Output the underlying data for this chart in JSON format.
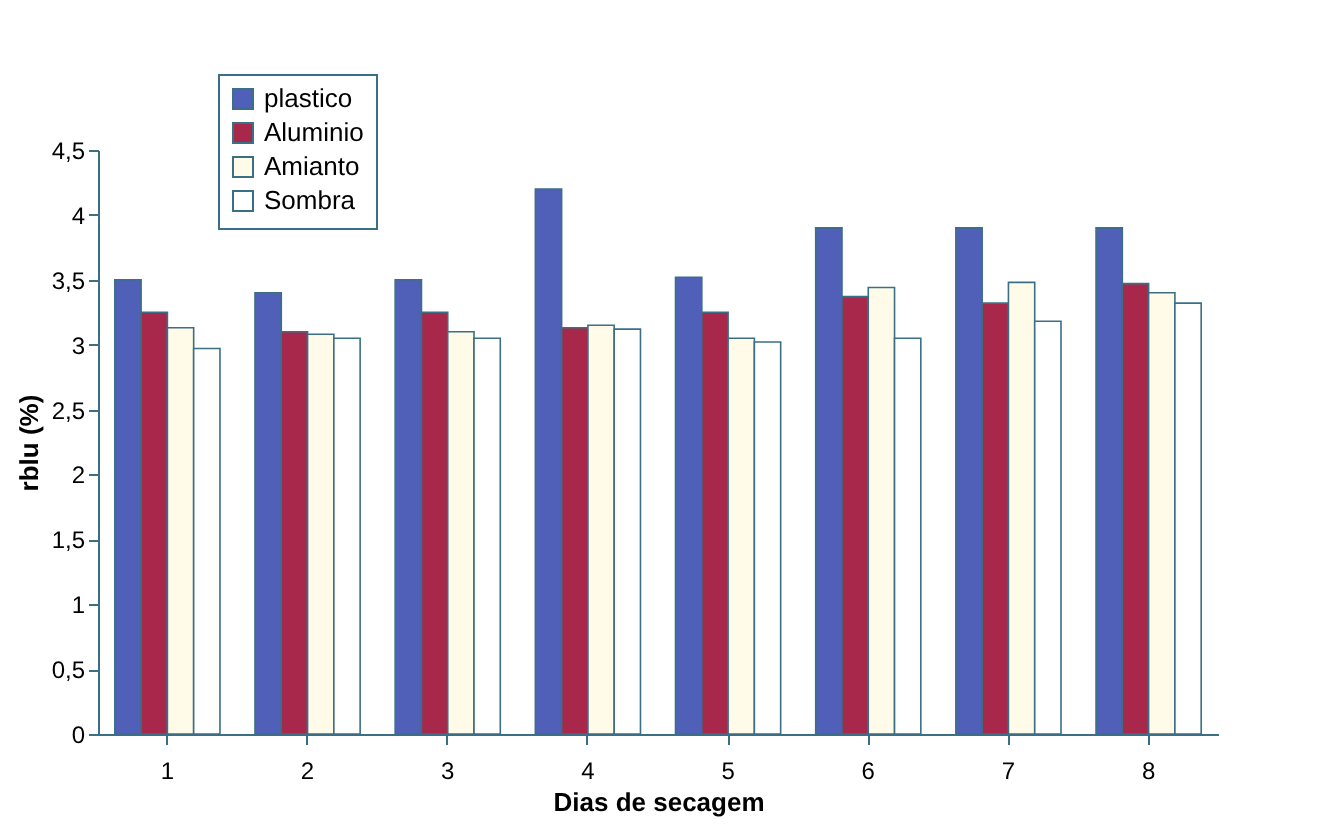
{
  "chart_data": {
    "type": "bar",
    "xlabel": "Dias de secagem",
    "ylabel": "rblu (%)",
    "categories": [
      "1",
      "2",
      "3",
      "4",
      "5",
      "6",
      "7",
      "8"
    ],
    "series": [
      {
        "name": "plastico",
        "color": "#5060b8",
        "values": [
          3.5,
          3.4,
          3.5,
          4.2,
          3.52,
          3.9,
          3.9,
          3.9
        ]
      },
      {
        "name": "Aluminio",
        "color": "#a8284c",
        "values": [
          3.25,
          3.1,
          3.25,
          3.13,
          3.25,
          3.37,
          3.32,
          3.47
        ]
      },
      {
        "name": "Amianto",
        "color": "#fffbe8",
        "values": [
          3.13,
          3.08,
          3.1,
          3.15,
          3.05,
          3.44,
          3.48,
          3.4
        ]
      },
      {
        "name": "Sombra",
        "color": "#ffffff",
        "values": [
          2.97,
          3.05,
          3.05,
          3.12,
          3.02,
          3.05,
          3.18,
          3.32
        ]
      }
    ],
    "ylim": [
      0,
      4.5
    ],
    "yticks": [
      0,
      {
        "value": 0.5,
        "label": "0,5"
      },
      1,
      {
        "value": 1.5,
        "label": "1,5"
      },
      2,
      {
        "value": 2.5,
        "label": "2,5"
      },
      3,
      {
        "value": 3.5,
        "label": "3,5"
      },
      4,
      {
        "value": 4.5,
        "label": "4,5"
      }
    ],
    "legend": "top left",
    "grid": false
  }
}
